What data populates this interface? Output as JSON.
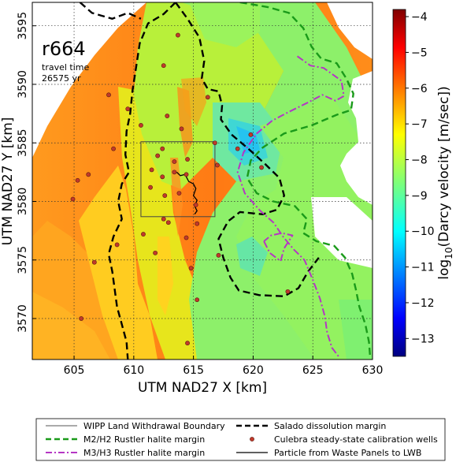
{
  "chart_data": {
    "type": "heatmap",
    "title": "",
    "run_label": "r664",
    "travel_time_label": "travel time",
    "travel_time_value": "26575 yr",
    "xlabel": "UTM NAD27 X [km]",
    "ylabel": "UTM NAD27 Y [km]",
    "xlim": [
      601.5,
      630
    ],
    "ylim": [
      3566.5,
      3597
    ],
    "x_ticks": [
      605,
      610,
      615,
      620,
      625,
      630
    ],
    "y_ticks": [
      3570,
      3575,
      3580,
      3585,
      3590,
      3595
    ],
    "grid": true,
    "colorbar": {
      "label_main": "log",
      "label_sub": "10",
      "label_rest": "(Darcy velocity [m/sec])",
      "range": [
        -13.5,
        -3.8
      ],
      "ticks": [
        -4,
        -5,
        -6,
        -7,
        -8,
        -9,
        -10,
        -11,
        -12,
        -13
      ],
      "colormap": "jet"
    },
    "wipp_boundary": {
      "x": [
        610.6,
        616.8
      ],
      "y": [
        3578.7,
        3585.1
      ]
    },
    "salado_margin": [
      [
        [
          605.5,
          3597
        ],
        [
          606.5,
          3596.1
        ],
        [
          608.2,
          3595.6
        ],
        [
          609.5,
          3596.1
        ],
        [
          610.6,
          3595.6
        ]
      ],
      [
        [
          613.5,
          3597
        ],
        [
          614.5,
          3595.6
        ],
        [
          615.5,
          3594
        ],
        [
          615.9,
          3592
        ],
        [
          615.7,
          3590.5
        ],
        [
          616.2,
          3589.6
        ],
        [
          617.1,
          3589.4
        ],
        [
          617.4,
          3588.2
        ],
        [
          617.3,
          3587
        ],
        [
          618.2,
          3585.7
        ],
        [
          619.6,
          3584.5
        ],
        [
          621,
          3583.2
        ],
        [
          622.2,
          3582
        ],
        [
          622.6,
          3580.5
        ],
        [
          622,
          3579.3
        ],
        [
          620.8,
          3578.9
        ],
        [
          618.9,
          3579.1
        ],
        [
          617.9,
          3578.3
        ],
        [
          617.1,
          3576.8
        ],
        [
          617.5,
          3575.2
        ],
        [
          618.1,
          3573.5
        ],
        [
          618.8,
          3572.4
        ],
        [
          620.5,
          3572
        ],
        [
          622.6,
          3571.9
        ],
        [
          623.8,
          3572.6
        ],
        [
          624.6,
          3574
        ],
        [
          625.5,
          3575.2
        ]
      ],
      [
        [
          613.5,
          3597
        ],
        [
          612.5,
          3596
        ],
        [
          611.2,
          3595.2
        ],
        [
          610.5,
          3593.5
        ],
        [
          610.2,
          3591.5
        ],
        [
          609.9,
          3589.5
        ],
        [
          609.7,
          3587.5
        ],
        [
          609.4,
          3586
        ],
        [
          609.3,
          3584
        ],
        [
          609.6,
          3582.5
        ],
        [
          609,
          3581.5
        ],
        [
          608.7,
          3580
        ],
        [
          609,
          3578.5
        ],
        [
          608.3,
          3577
        ],
        [
          607.9,
          3575.5
        ],
        [
          608.2,
          3574
        ],
        [
          608.4,
          3572.5
        ],
        [
          608.6,
          3571
        ],
        [
          609,
          3569.5
        ],
        [
          609.4,
          3568
        ],
        [
          609.5,
          3566.5
        ]
      ]
    ],
    "m2h2_margin": [
      [
        [
          618.9,
          3597
        ],
        [
          621.2,
          3596.6
        ],
        [
          623,
          3596.1
        ],
        [
          624.2,
          3594.8
        ],
        [
          624.9,
          3593.2
        ],
        [
          625.7,
          3592.2
        ],
        [
          627,
          3591.8
        ],
        [
          627.8,
          3590.5
        ],
        [
          628.4,
          3589.2
        ],
        [
          628.2,
          3587.8
        ],
        [
          627,
          3587.4
        ],
        [
          624.9,
          3586.5
        ],
        [
          622.6,
          3585.8
        ],
        [
          620.8,
          3584.6
        ],
        [
          619.8,
          3583.5
        ],
        [
          619.5,
          3582
        ],
        [
          620.3,
          3580.7
        ],
        [
          621.7,
          3580
        ],
        [
          623.5,
          3579.6
        ],
        [
          624.5,
          3578.5
        ],
        [
          624.2,
          3577.3
        ],
        [
          625.3,
          3576.6
        ],
        [
          626.8,
          3576.2
        ],
        [
          627.7,
          3575.2
        ],
        [
          628.3,
          3573.8
        ],
        [
          628.6,
          3572.5
        ],
        [
          628.9,
          3571
        ],
        [
          629.4,
          3569.5
        ],
        [
          629.7,
          3568
        ],
        [
          629.8,
          3566.7
        ]
      ]
    ],
    "m3h3_margin": [
      [
        [
          623.7,
          3592.4
        ],
        [
          624.8,
          3591.6
        ],
        [
          625.9,
          3591.4
        ],
        [
          627.4,
          3590.3
        ],
        [
          627.6,
          3589
        ],
        [
          626.9,
          3588.6
        ],
        [
          625.8,
          3589.1
        ],
        [
          624.5,
          3588.4
        ],
        [
          622.9,
          3587.6
        ],
        [
          621.6,
          3586.9
        ],
        [
          620.3,
          3585.8
        ],
        [
          619.2,
          3584.2
        ],
        [
          618.7,
          3582.5
        ],
        [
          619.3,
          3580.7
        ],
        [
          620.6,
          3579.2
        ],
        [
          621.7,
          3578.2
        ],
        [
          622.5,
          3577
        ],
        [
          623.4,
          3575.9
        ],
        [
          624.3,
          3575
        ],
        [
          625,
          3573.3
        ],
        [
          625.6,
          3571.7
        ],
        [
          626,
          3570.2
        ],
        [
          626.2,
          3568.8
        ],
        [
          626.6,
          3567.5
        ],
        [
          627.2,
          3566.7
        ]
      ],
      [
        [
          620.9,
          3576.6
        ],
        [
          621.4,
          3575.6
        ],
        [
          622.3,
          3574.9
        ],
        [
          622.6,
          3576
        ],
        [
          623.3,
          3577.1
        ],
        [
          622.4,
          3577.3
        ],
        [
          621.5,
          3577.1
        ],
        [
          620.9,
          3576.6
        ]
      ]
    ],
    "particle_path": [
      [
        613.6,
        3582.5
      ],
      [
        613.9,
        3582.2
      ],
      [
        614.3,
        3582.3
      ],
      [
        614.6,
        3581.7
      ],
      [
        615,
        3581.5
      ],
      [
        615.2,
        3581.1
      ],
      [
        615,
        3580.5
      ],
      [
        615.3,
        3580.1
      ],
      [
        615.1,
        3579.6
      ],
      [
        615.3,
        3579.2
      ],
      [
        615.1,
        3578.9
      ]
    ],
    "wells": [
      [
        613.7,
        3594.2
      ],
      [
        612.5,
        3591.6
      ],
      [
        607.9,
        3589.1
      ],
      [
        616.2,
        3588.9
      ],
      [
        609.5,
        3587.9
      ],
      [
        612.8,
        3587.3
      ],
      [
        614,
        3586.2
      ],
      [
        610.6,
        3586.5
      ],
      [
        608.3,
        3584.5
      ],
      [
        612.4,
        3584.5
      ],
      [
        616.8,
        3585
      ],
      [
        612,
        3583.9
      ],
      [
        613.4,
        3583.4
      ],
      [
        614.5,
        3583.6
      ],
      [
        617,
        3583.1
      ],
      [
        611.5,
        3582.7
      ],
      [
        612.4,
        3582.1
      ],
      [
        613.4,
        3582.5
      ],
      [
        614.4,
        3582.3
      ],
      [
        611.4,
        3581.2
      ],
      [
        612.6,
        3580.5
      ],
      [
        613.8,
        3580.7
      ],
      [
        615.2,
        3579.7
      ],
      [
        606.2,
        3582.3
      ],
      [
        604.9,
        3580.2
      ],
      [
        605.3,
        3581.8
      ],
      [
        615.3,
        3578.1
      ],
      [
        614.4,
        3576.9
      ],
      [
        610.8,
        3577.2
      ],
      [
        617.1,
        3575.4
      ],
      [
        606.7,
        3574.8
      ],
      [
        615.3,
        3571.6
      ],
      [
        614.5,
        3567.9
      ],
      [
        605.6,
        3570
      ],
      [
        611.8,
        3575.6
      ],
      [
        612.9,
        3578.2
      ],
      [
        622.9,
        3572.3
      ],
      [
        619.8,
        3585.7
      ],
      [
        618.7,
        3584.5
      ],
      [
        620.7,
        3582.9
      ],
      [
        608.6,
        3576.3
      ],
      [
        612.5,
        3578.5
      ],
      [
        614.8,
        3574.3
      ]
    ],
    "legend": {
      "position": "below",
      "entries": [
        {
          "label": "WIPP Land Withdrawal Boundary",
          "style": "thin-line",
          "color": "#555555"
        },
        {
          "label": "M2/H2 Rustler halite margin",
          "style": "dash",
          "color": "#1a9a1a"
        },
        {
          "label": "M3/H3 Rustler halite margin",
          "style": "dashdot",
          "color": "#b536c4"
        },
        {
          "label": "Salado dissolution margin",
          "style": "dash",
          "color": "#000000"
        },
        {
          "label": "Culebra steady-state calibration wells",
          "style": "marker",
          "color": "#c0392b"
        },
        {
          "label": "Particle from Waste Panels to LWB",
          "style": "line",
          "color": "#000000"
        }
      ]
    }
  }
}
